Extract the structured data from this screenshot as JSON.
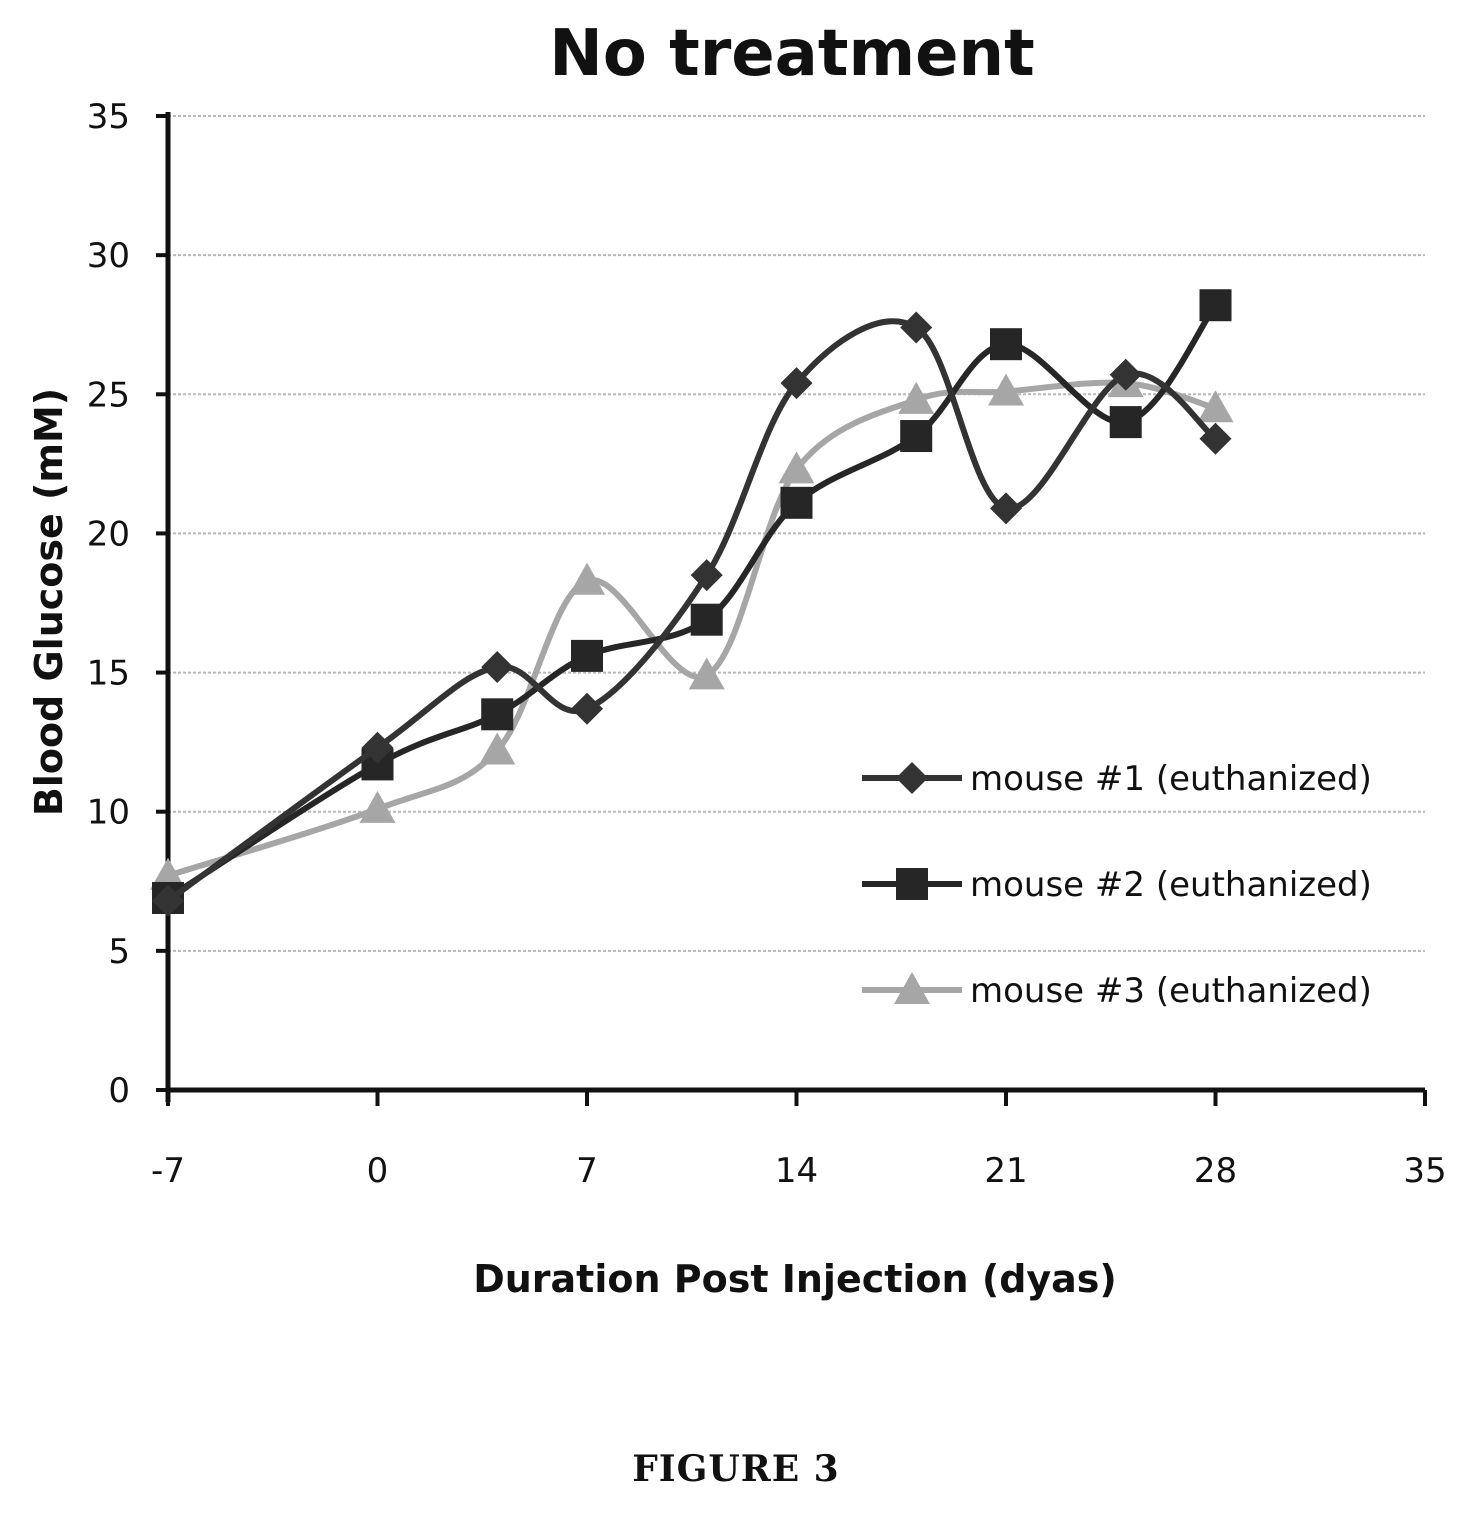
{
  "chart_data": {
    "type": "line",
    "title": "No treatment",
    "xlabel": "Duration Post Injection (dyas)",
    "ylabel": "Blood Glucose (mM)",
    "xlim": [
      -7,
      35
    ],
    "ylim": [
      0,
      35
    ],
    "xticks": [
      -7,
      0,
      7,
      14,
      21,
      28,
      35
    ],
    "yticks": [
      0,
      5,
      10,
      15,
      20,
      25,
      30,
      35
    ],
    "grid": true,
    "legend_position": "right",
    "series": [
      {
        "name": "mouse #1 (euthanized)",
        "color": "#333333",
        "marker": "diamond",
        "x": [
          -7,
          0,
          4,
          7,
          11,
          14,
          18,
          21,
          25,
          28
        ],
        "y": [
          6.8,
          12.3,
          15.2,
          13.7,
          18.5,
          25.4,
          27.4,
          20.9,
          25.7,
          23.4
        ]
      },
      {
        "name": "mouse #2 (euthanized)",
        "color": "#262626",
        "marker": "square",
        "x": [
          -7,
          0,
          4,
          7,
          11,
          14,
          18,
          21,
          25,
          28
        ],
        "y": [
          6.9,
          11.7,
          13.5,
          15.6,
          16.9,
          21.1,
          23.5,
          26.8,
          24.0,
          28.2
        ]
      },
      {
        "name": "mouse #3 (euthanized)",
        "color": "#a6a6a6",
        "marker": "triangle",
        "x": [
          -7,
          0,
          4,
          7,
          11,
          14,
          18,
          21,
          25,
          28
        ],
        "y": [
          7.7,
          10.1,
          12.2,
          18.3,
          14.9,
          22.3,
          24.8,
          25.1,
          25.4,
          24.5
        ]
      }
    ]
  },
  "figure_caption": "FIGURE 3"
}
